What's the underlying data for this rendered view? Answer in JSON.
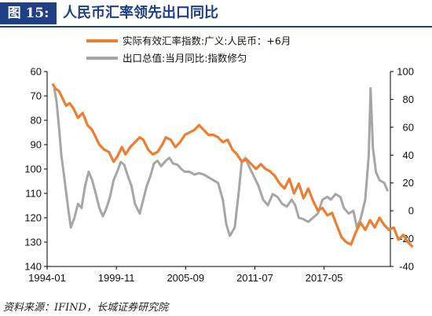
{
  "header": {
    "fig_label": "图 15:",
    "title": "人民币汇率领先出口同比"
  },
  "source": "资料来源：IFIND，长城证券研究院",
  "chart_data": {
    "type": "line",
    "title": "人民币汇率领先出口同比",
    "x_range": [
      "1994-01",
      "2022-12"
    ],
    "x_ticks": [
      "1994-01",
      "1999-11",
      "2005-09",
      "2011-07",
      "2017-05"
    ],
    "y_left": {
      "min": 60,
      "max": 140,
      "inverted": true,
      "ticks": [
        "60",
        "70",
        "80",
        "90",
        "100",
        "110",
        "120",
        "130",
        "140"
      ]
    },
    "y_right": {
      "min": -40,
      "max": 100,
      "ticks": [
        "-40",
        "-20",
        "0",
        "20",
        "40",
        "60",
        "80",
        "100"
      ]
    },
    "colors": {
      "reer": "#ed7d31",
      "export": "#a6a6a6"
    },
    "grid": false,
    "legend_position": "top",
    "series": [
      {
        "name": "实际有效汇率指数:广义:人民币：+6月",
        "axis": "left",
        "color": "#ed7d31",
        "points": [
          [
            1994.45,
            65
          ],
          [
            1994.7,
            67
          ],
          [
            1995.0,
            68
          ],
          [
            1995.3,
            71
          ],
          [
            1995.6,
            74
          ],
          [
            1995.9,
            73
          ],
          [
            1996.2,
            75
          ],
          [
            1996.6,
            79
          ],
          [
            1997.0,
            77
          ],
          [
            1997.4,
            82
          ],
          [
            1997.8,
            84
          ],
          [
            1998.0,
            86
          ],
          [
            1998.4,
            90
          ],
          [
            1998.8,
            92
          ],
          [
            1999.2,
            93
          ],
          [
            1999.6,
            97
          ],
          [
            1999.9,
            95
          ],
          [
            2000.3,
            91
          ],
          [
            2000.6,
            94
          ],
          [
            2001.0,
            91
          ],
          [
            2001.4,
            89
          ],
          [
            2001.8,
            87
          ],
          [
            2002.1,
            88
          ],
          [
            2002.5,
            92
          ],
          [
            2002.9,
            94
          ],
          [
            2003.3,
            93
          ],
          [
            2003.7,
            90
          ],
          [
            2004.0,
            87
          ],
          [
            2004.4,
            88
          ],
          [
            2004.8,
            91
          ],
          [
            2005.2,
            89
          ],
          [
            2005.6,
            86
          ],
          [
            2006.0,
            85
          ],
          [
            2006.4,
            84
          ],
          [
            2006.8,
            82
          ],
          [
            2007.2,
            84
          ],
          [
            2007.6,
            86
          ],
          [
            2008.0,
            86
          ],
          [
            2008.4,
            87
          ],
          [
            2008.8,
            89
          ],
          [
            2009.2,
            88
          ],
          [
            2009.6,
            92
          ],
          [
            2010.0,
            94
          ],
          [
            2010.4,
            97
          ],
          [
            2010.8,
            96
          ],
          [
            2011.2,
            98
          ],
          [
            2011.6,
            100
          ],
          [
            2012.0,
            98
          ],
          [
            2012.4,
            100
          ],
          [
            2012.8,
            101
          ],
          [
            2013.2,
            103
          ],
          [
            2013.6,
            106
          ],
          [
            2014.0,
            108
          ],
          [
            2014.4,
            104
          ],
          [
            2014.8,
            110
          ],
          [
            2015.2,
            106
          ],
          [
            2015.6,
            112
          ],
          [
            2016.0,
            108
          ],
          [
            2016.4,
            113
          ],
          [
            2016.8,
            117
          ],
          [
            2017.2,
            116
          ],
          [
            2017.6,
            119
          ],
          [
            2018.0,
            118
          ],
          [
            2018.4,
            123
          ],
          [
            2018.8,
            128
          ],
          [
            2019.2,
            130
          ],
          [
            2019.6,
            131
          ],
          [
            2020.0,
            126
          ],
          [
            2020.4,
            122
          ],
          [
            2020.8,
            125
          ],
          [
            2021.2,
            121
          ],
          [
            2021.6,
            124
          ],
          [
            2022.0,
            120
          ],
          [
            2022.4,
            123
          ],
          [
            2022.8,
            125
          ],
          [
            2023.2,
            124
          ],
          [
            2023.6,
            129
          ],
          [
            2024.0,
            127
          ],
          [
            2024.4,
            130
          ],
          [
            2024.8,
            132
          ]
        ]
      },
      {
        "name": "出口总值:当月同比:指数修匀",
        "axis": "right",
        "color": "#a6a6a6",
        "points": [
          [
            1994.6,
            88
          ],
          [
            1994.8,
            78
          ],
          [
            1995.0,
            60
          ],
          [
            1995.2,
            40
          ],
          [
            1995.5,
            20
          ],
          [
            1995.8,
            0
          ],
          [
            1996.0,
            -12
          ],
          [
            1996.3,
            -5
          ],
          [
            1996.6,
            5
          ],
          [
            1996.9,
            2
          ],
          [
            1997.2,
            18
          ],
          [
            1997.5,
            28
          ],
          [
            1997.8,
            22
          ],
          [
            1998.1,
            12
          ],
          [
            1998.4,
            2
          ],
          [
            1998.7,
            -4
          ],
          [
            1999.0,
            2
          ],
          [
            1999.3,
            10
          ],
          [
            1999.6,
            22
          ],
          [
            1999.9,
            28
          ],
          [
            2000.2,
            35
          ],
          [
            2000.5,
            33
          ],
          [
            2000.8,
            25
          ],
          [
            2001.1,
            18
          ],
          [
            2001.4,
            5
          ],
          [
            2001.8,
            -2
          ],
          [
            2002.1,
            8
          ],
          [
            2002.4,
            18
          ],
          [
            2002.7,
            25
          ],
          [
            2003.0,
            34
          ],
          [
            2003.3,
            36
          ],
          [
            2003.6,
            32
          ],
          [
            2004.0,
            36
          ],
          [
            2004.3,
            38
          ],
          [
            2004.6,
            34
          ],
          [
            2005.0,
            33
          ],
          [
            2005.3,
            30
          ],
          [
            2005.6,
            28
          ],
          [
            2006.0,
            28
          ],
          [
            2006.4,
            26
          ],
          [
            2006.8,
            27
          ],
          [
            2007.2,
            26
          ],
          [
            2007.6,
            24
          ],
          [
            2008.0,
            22
          ],
          [
            2008.4,
            20
          ],
          [
            2008.8,
            8
          ],
          [
            2009.1,
            -10
          ],
          [
            2009.4,
            -18
          ],
          [
            2009.8,
            -12
          ],
          [
            2010.1,
            10
          ],
          [
            2010.4,
            35
          ],
          [
            2010.7,
            38
          ],
          [
            2011.0,
            32
          ],
          [
            2011.4,
            25
          ],
          [
            2011.8,
            18
          ],
          [
            2012.2,
            8
          ],
          [
            2012.6,
            4
          ],
          [
            2013.0,
            12
          ],
          [
            2013.4,
            10
          ],
          [
            2013.8,
            5
          ],
          [
            2014.2,
            3
          ],
          [
            2014.6,
            8
          ],
          [
            2014.9,
            4
          ],
          [
            2015.2,
            -5
          ],
          [
            2015.6,
            -6
          ],
          [
            2016.0,
            -8
          ],
          [
            2016.4,
            -5
          ],
          [
            2016.8,
            -2
          ],
          [
            2017.2,
            8
          ],
          [
            2017.6,
            10
          ],
          [
            2017.9,
            8
          ],
          [
            2018.3,
            12
          ],
          [
            2018.7,
            10
          ],
          [
            2019.0,
            2
          ],
          [
            2019.4,
            -2
          ],
          [
            2019.8,
            0
          ],
          [
            2020.1,
            -12
          ],
          [
            2020.4,
            -6
          ],
          [
            2020.8,
            8
          ],
          [
            2021.1,
            40
          ],
          [
            2021.25,
            88
          ],
          [
            2021.45,
            45
          ],
          [
            2021.7,
            28
          ],
          [
            2022.0,
            22
          ],
          [
            2022.4,
            20
          ],
          [
            2022.7,
            14
          ]
        ]
      }
    ]
  }
}
